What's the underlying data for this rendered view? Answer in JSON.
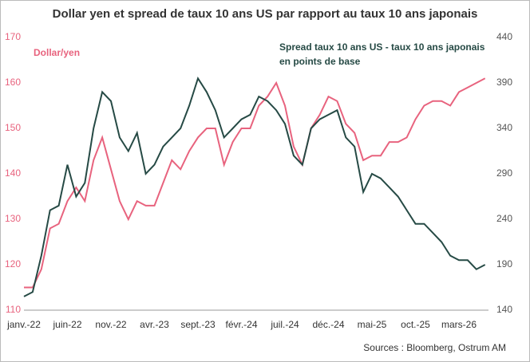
{
  "chart_data": {
    "type": "line",
    "title": "Dollar yen et spread de taux 10 ans US par rapport au taux 10 ans japonais",
    "source": "Sources : Bloomberg, Ostrum AM",
    "categories": [
      "janv.-22",
      null,
      null,
      null,
      null,
      "juin-22",
      null,
      null,
      null,
      null,
      "nov.-22",
      null,
      null,
      null,
      null,
      "avr.-23",
      null,
      null,
      null,
      null,
      "sept.-23",
      null,
      null,
      null,
      null,
      "févr.-24",
      null,
      null,
      null,
      null,
      "juil.-24",
      null,
      null,
      null,
      null,
      "déc.-24",
      null,
      null,
      null,
      null,
      "mai-25",
      null,
      null,
      null,
      null,
      "oct.-25",
      null,
      null,
      null,
      null,
      "mars-26",
      null,
      null,
      null
    ],
    "series": [
      {
        "name": "Dollar/yen",
        "color": "#e8637e",
        "axis": "y",
        "values": [
          115,
          115,
          119,
          128,
          129,
          134,
          137,
          134,
          143,
          148,
          141,
          134,
          130,
          134,
          133,
          133,
          138,
          143,
          141,
          145,
          148,
          150,
          150,
          142,
          147,
          150,
          150,
          155,
          157,
          160,
          155,
          146,
          142,
          150,
          153,
          157,
          156,
          151,
          149,
          143,
          144,
          144,
          147,
          147,
          148,
          152,
          155,
          156,
          156,
          155,
          158,
          159,
          160,
          161
        ]
      },
      {
        "name": [
          "Spread taux 10 ans US - taux 10 ans japonais",
          "en points de base"
        ],
        "color": "#264a45",
        "axis": "y2",
        "values": [
          155,
          160,
          200,
          250,
          255,
          300,
          265,
          280,
          340,
          380,
          370,
          330,
          315,
          335,
          290,
          300,
          320,
          330,
          340,
          365,
          395,
          380,
          360,
          330,
          340,
          350,
          355,
          375,
          370,
          360,
          345,
          310,
          300,
          340,
          350,
          355,
          360,
          330,
          320,
          270,
          290,
          285,
          275,
          265,
          250,
          235,
          235,
          225,
          215,
          200,
          195,
          195,
          185,
          190
        ]
      }
    ],
    "ylim": [
      110,
      170
    ],
    "yticks": [
      110,
      120,
      130,
      140,
      150,
      160,
      170
    ],
    "y2lim": [
      140,
      440
    ],
    "y2ticks": [
      140,
      190,
      240,
      290,
      340,
      390,
      440
    ],
    "grid": false
  }
}
